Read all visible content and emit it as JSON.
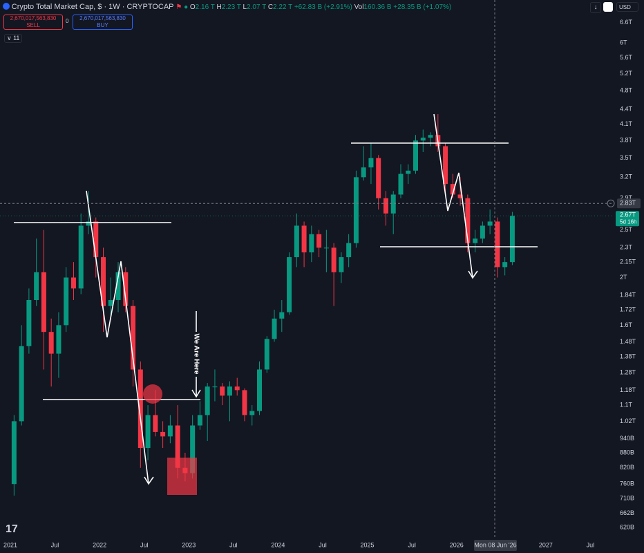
{
  "chart_data": {
    "type": "candlestick",
    "title": "Crypto Total Market Cap, $ · 1W · CRYPTOCAP",
    "ohlc_header": {
      "o_label": "O",
      "o": "2.16 T",
      "h_label": "H",
      "h": "2.23 T",
      "l_label": "L",
      "l": "2.07 T",
      "c_label": "C",
      "c": "2.22 T",
      "change": "+62.83 B (+2.91%)",
      "vol_label": "Vol",
      "vol": "160.36 B",
      "vol_change": "+28.35 B (+1.07%)"
    },
    "order_panel": {
      "sell_price": "2,670,017,563,830",
      "sell": "SELL",
      "spread": "0",
      "buy_price": "2,670,017,563,830",
      "buy": "BUY",
      "indicators": "11"
    },
    "currency": "USD",
    "up_color": "#089981",
    "down_color": "#f23645",
    "log_scale": true,
    "grid": false,
    "x": [
      "2021-01",
      "2021-02",
      "2021-03",
      "2021-04",
      "2021-05",
      "2021-06",
      "2021-07",
      "2021-08",
      "2021-09",
      "2021-10",
      "2021-11",
      "2021-12",
      "2022-01",
      "2022-02",
      "2022-03",
      "2022-04",
      "2022-05",
      "2022-06",
      "2022-07",
      "2022-08",
      "2022-09",
      "2022-10",
      "2022-11",
      "2022-12",
      "2023-01",
      "2023-02",
      "2023-03",
      "2023-04",
      "2023-05",
      "2023-06",
      "2023-07",
      "2023-08",
      "2023-09",
      "2023-10",
      "2023-11",
      "2023-12",
      "2024-01",
      "2024-02",
      "2024-03",
      "2024-04",
      "2024-05",
      "2024-06",
      "2024-07",
      "2024-08",
      "2024-09",
      "2024-10",
      "2024-11",
      "2024-12",
      "2025-01",
      "2025-02",
      "2025-03",
      "2025-04",
      "2025-05",
      "2025-06",
      "2025-07",
      "2025-08",
      "2025-09",
      "2025-10",
      "2025-11",
      "2025-12",
      "2026-01",
      "2026-02",
      "2026-03",
      "2026-04",
      "2026-05",
      "2026-06",
      "2026-07",
      "2026-08"
    ],
    "open": [
      0.76,
      1.02,
      1.45,
      1.8,
      2.05,
      1.55,
      1.4,
      1.6,
      2.0,
      1.9,
      2.55,
      2.6,
      2.2,
      1.75,
      1.8,
      2.05,
      1.75,
      1.3,
      0.9,
      1.05,
      0.97,
      0.95,
      1.0,
      0.82,
      0.8,
      1.0,
      1.05,
      1.2,
      1.2,
      1.15,
      1.2,
      1.18,
      1.05,
      1.07,
      1.3,
      1.5,
      1.65,
      1.7,
      2.2,
      2.55,
      2.25,
      2.45,
      2.3,
      2.3,
      2.05,
      2.2,
      2.35,
      3.2,
      3.35,
      3.5,
      2.9,
      2.7,
      2.95,
      3.25,
      3.3,
      3.8,
      3.85,
      3.9,
      3.7,
      3.1,
      2.95,
      2.9,
      2.35,
      2.4,
      2.55,
      2.6,
      2.1,
      2.15
    ],
    "high": [
      1.05,
      1.6,
      1.9,
      2.4,
      2.5,
      1.65,
      1.7,
      2.1,
      2.15,
      2.7,
      3.0,
      2.65,
      2.3,
      2.0,
      2.15,
      2.1,
      1.8,
      1.35,
      1.1,
      1.18,
      1.02,
      1.05,
      1.1,
      0.88,
      1.05,
      1.12,
      1.22,
      1.3,
      1.22,
      1.23,
      1.25,
      1.19,
      1.1,
      1.35,
      1.52,
      1.72,
      1.8,
      2.25,
      2.7,
      2.6,
      2.55,
      2.5,
      2.5,
      2.35,
      2.25,
      2.45,
      3.3,
      3.7,
      3.75,
      3.55,
      3.0,
      3.0,
      3.4,
      3.4,
      3.9,
      4.0,
      3.95,
      4.3,
      3.75,
      3.25,
      3.2,
      2.95,
      2.5,
      2.6,
      2.75,
      2.65,
      2.2,
      2.72
    ],
    "low": [
      0.72,
      1.0,
      1.4,
      1.75,
      1.3,
      1.2,
      1.25,
      1.55,
      1.8,
      1.85,
      2.45,
      2.0,
      1.55,
      1.65,
      1.7,
      1.7,
      1.2,
      0.82,
      0.85,
      0.95,
      0.9,
      0.92,
      0.78,
      0.77,
      0.78,
      0.98,
      0.93,
      1.12,
      1.1,
      1.02,
      1.15,
      1.02,
      1.0,
      1.05,
      1.28,
      1.48,
      1.55,
      1.68,
      2.1,
      2.1,
      2.15,
      2.2,
      2.05,
      1.75,
      1.95,
      2.1,
      2.3,
      3.15,
      3.1,
      2.75,
      2.55,
      2.45,
      2.9,
      3.1,
      3.25,
      3.6,
      3.7,
      3.6,
      2.95,
      2.9,
      2.8,
      2.25,
      2.25,
      2.35,
      2.45,
      2.0,
      2.02,
      2.12
    ],
    "close": [
      1.02,
      1.45,
      1.8,
      2.05,
      1.55,
      1.4,
      1.6,
      2.0,
      1.9,
      2.55,
      2.6,
      2.2,
      1.75,
      1.8,
      2.05,
      1.75,
      1.3,
      0.9,
      1.05,
      0.97,
      0.95,
      1.0,
      0.82,
      0.8,
      1.0,
      1.05,
      1.2,
      1.2,
      1.15,
      1.2,
      1.18,
      1.05,
      1.07,
      1.3,
      1.5,
      1.65,
      1.7,
      2.2,
      2.55,
      2.25,
      2.45,
      2.3,
      2.3,
      2.05,
      2.2,
      2.35,
      3.2,
      3.35,
      3.5,
      2.9,
      2.7,
      2.95,
      3.25,
      3.3,
      3.8,
      3.85,
      3.9,
      3.7,
      3.1,
      2.95,
      2.9,
      2.35,
      2.4,
      2.55,
      2.6,
      2.1,
      2.15,
      2.67
    ],
    "xlim": [
      2020.884,
      2027.76
    ],
    "xticks": [
      2021,
      {
        "value": 2021.5,
        "label": "Jul"
      },
      2022,
      {
        "value": 2022.5,
        "label": "Jul"
      },
      2023,
      {
        "value": 2023.5,
        "label": "Jul"
      },
      2024,
      {
        "value": 2024.5,
        "label": "Jul"
      },
      2025,
      {
        "value": 2025.5,
        "label": "Jul"
      },
      2026,
      2027,
      {
        "value": 2027.5,
        "label": "Jul"
      }
    ],
    "ylim": [
      0.587,
      7.34
    ],
    "yticks": [
      {
        "value": 6.6,
        "label": "6.6T"
      },
      {
        "value": 6,
        "label": "6T"
      },
      {
        "value": 5.6,
        "label": "5.6T"
      },
      {
        "value": 5.2,
        "label": "5.2T"
      },
      {
        "value": 4.8,
        "label": "4.8T"
      },
      {
        "value": 4.4,
        "label": "4.4T"
      },
      {
        "value": 4.1,
        "label": "4.1T"
      },
      {
        "value": 3.8,
        "label": "3.8T"
      },
      {
        "value": 3.5,
        "label": "3.5T"
      },
      {
        "value": 3.2,
        "label": "3.2T"
      },
      {
        "value": 2.9,
        "label": "2.9T"
      },
      {
        "value": 2.5,
        "label": "2.5T"
      },
      {
        "value": 2.3,
        "label": "2.3T"
      },
      {
        "value": 2.15,
        "label": "2.15T"
      },
      {
        "value": 2,
        "label": "2T"
      },
      {
        "value": 1.84,
        "label": "1.84T"
      },
      {
        "value": 1.72,
        "label": "1.72T"
      },
      {
        "value": 1.6,
        "label": "1.6T"
      },
      {
        "value": 1.48,
        "label": "1.48T"
      },
      {
        "value": 1.38,
        "label": "1.38T"
      },
      {
        "value": 1.28,
        "label": "1.28T"
      },
      {
        "value": 1.18,
        "label": "1.18T"
      },
      {
        "value": 1.1,
        "label": "1.1T"
      },
      {
        "value": 1.02,
        "label": "1.02T"
      },
      {
        "value": 0.94,
        "label": "940B"
      },
      {
        "value": 0.88,
        "label": "880B"
      },
      {
        "value": 0.82,
        "label": "820B"
      },
      {
        "value": 0.76,
        "label": "760B"
      },
      {
        "value": 0.71,
        "label": "710B"
      },
      {
        "value": 0.662,
        "label": "662B"
      },
      {
        "value": 0.62,
        "label": "620B"
      }
    ],
    "last_price": {
      "value": 2.67,
      "label": "2.67T",
      "countdown": "5d 16h"
    },
    "crosshair": {
      "y": {
        "value": 2.83,
        "label": "2.83T"
      },
      "x_label": "Mon 08 Jun '26"
    },
    "annotations": [
      "We Are Here"
    ]
  }
}
